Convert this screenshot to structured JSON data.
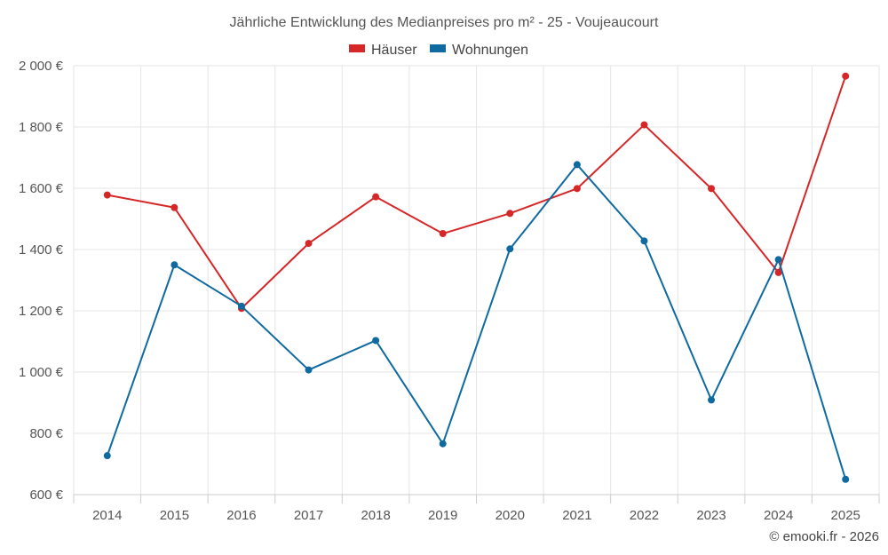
{
  "chart_data": {
    "type": "line",
    "title": "Jährliche Entwicklung des Medianpreises pro m² - 25 - Voujeaucourt",
    "categories": [
      "2014",
      "2015",
      "2016",
      "2017",
      "2018",
      "2019",
      "2020",
      "2021",
      "2022",
      "2023",
      "2024",
      "2025"
    ],
    "series": [
      {
        "name": "Häuser",
        "color": "#d62728",
        "values": [
          1578,
          1537,
          1208,
          1420,
          1572,
          1452,
          1518,
          1599,
          1807,
          1599,
          1325,
          1966
        ]
      },
      {
        "name": "Wohnungen",
        "color": "#0f6aa0",
        "values": [
          727,
          1350,
          1215,
          1007,
          1103,
          766,
          1402,
          1677,
          1428,
          909,
          1367,
          650
        ]
      }
    ],
    "ylim": [
      600,
      2000
    ],
    "yticks": [
      600,
      800,
      1000,
      1200,
      1400,
      1600,
      1800,
      2000
    ],
    "ytick_labels": [
      "600 €",
      "800 €",
      "1 000 €",
      "1 200 €",
      "1 400 €",
      "1 600 €",
      "1 800 €",
      "2 000 €"
    ],
    "xlabel": "",
    "ylabel": "",
    "grid": true,
    "legend": "top-center"
  },
  "credit": "© emooki.fr - 2026"
}
